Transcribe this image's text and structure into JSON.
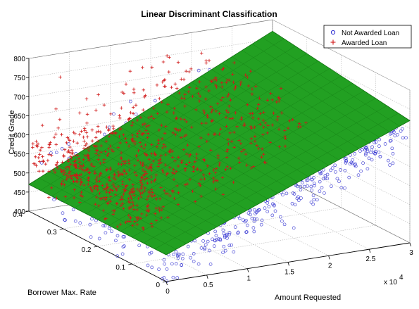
{
  "chart_data": {
    "type": "scatter",
    "title": "Linear Discriminant Classification",
    "xlabel": "Amount Requested",
    "ylabel": "Borrower Max. Rate",
    "zlabel": "Credit Grade",
    "x_multiplier": "x 10",
    "x_multiplier_exp": "4",
    "xlim": [
      0,
      3
    ],
    "ylim": [
      0,
      0.4
    ],
    "zlim": [
      400,
      800
    ],
    "x_ticks": [
      "0",
      "0.5",
      "1",
      "1.5",
      "2",
      "2.5",
      "3"
    ],
    "y_ticks": [
      "0",
      "0.1",
      "0.2",
      "0.3",
      "0.4"
    ],
    "z_ticks": [
      "400",
      "450",
      "500",
      "550",
      "600",
      "650",
      "700",
      "750",
      "800"
    ],
    "grid": true,
    "legend_position": "top-right",
    "series": [
      {
        "name": "Not Awarded Loan",
        "marker": "circle",
        "color": "#2a2ad0",
        "description_points": [
          [
            0.3,
            0.1,
            520
          ],
          [
            0.8,
            0.08,
            540
          ],
          [
            1.2,
            0.05,
            560
          ],
          [
            1.6,
            0.03,
            600
          ],
          [
            2.0,
            0.02,
            640
          ],
          [
            2.5,
            0.01,
            660
          ],
          [
            0.6,
            0.2,
            500
          ],
          [
            1.0,
            0.15,
            520
          ],
          [
            1.8,
            0.1,
            560
          ],
          [
            2.4,
            0.08,
            620
          ],
          [
            2.8,
            0.05,
            680
          ],
          [
            0.4,
            0.3,
            470
          ]
        ]
      },
      {
        "name": "Awarded Loan",
        "marker": "plus",
        "color": "#d01818",
        "description_points": [
          [
            0.2,
            0.3,
            640
          ],
          [
            0.5,
            0.35,
            700
          ],
          [
            0.8,
            0.32,
            680
          ],
          [
            1.0,
            0.25,
            660
          ],
          [
            1.4,
            0.3,
            720
          ],
          [
            0.3,
            0.38,
            750
          ],
          [
            0.6,
            0.2,
            620
          ],
          [
            1.2,
            0.35,
            700
          ],
          [
            0.9,
            0.28,
            690
          ],
          [
            0.4,
            0.22,
            600
          ]
        ]
      }
    ],
    "plane": {
      "name": "discriminant plane",
      "color": "#22a022",
      "corners": [
        [
          0,
          0.4,
          470
        ],
        [
          0,
          0,
          470
        ],
        [
          3,
          0,
          720
        ],
        [
          3,
          0.4,
          770
        ]
      ]
    }
  }
}
